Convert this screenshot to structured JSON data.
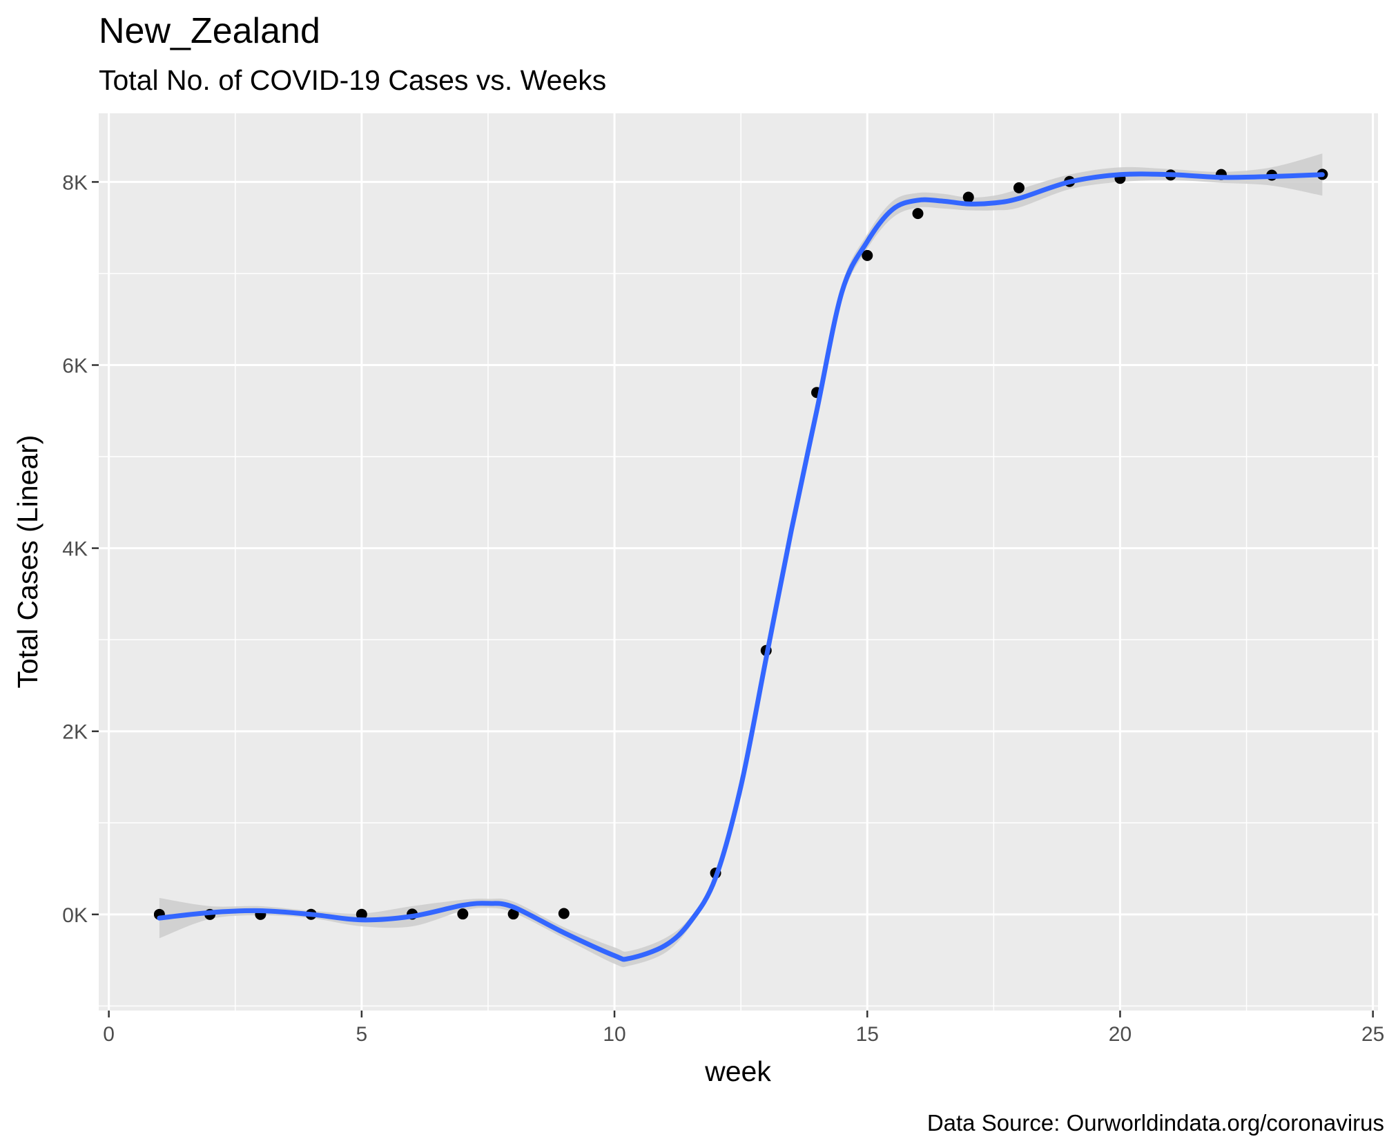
{
  "chart_data": {
    "type": "scatter",
    "title": "New_Zealand",
    "subtitle": "Total No. of COVID-19 Cases vs. Weeks",
    "xlabel": "week",
    "ylabel": "Total Cases (Linear)",
    "caption": "Data Source: Ourworldindata.org/coronavirus",
    "xlim": [
      -0.2,
      25.1
    ],
    "ylim": [
      -1050,
      8750
    ],
    "x_ticks": [
      0,
      5,
      10,
      15,
      20,
      25
    ],
    "x_tick_labels": [
      "0",
      "5",
      "10",
      "15",
      "20",
      "25"
    ],
    "y_ticks": [
      0,
      2000,
      4000,
      6000,
      8000
    ],
    "y_tick_labels": [
      "0K",
      "2K",
      "4K",
      "6K",
      "8K"
    ],
    "grid": true,
    "series": [
      {
        "kind": "points",
        "x": [
          1,
          2,
          3,
          4,
          5,
          6,
          7,
          8,
          9,
          12,
          13,
          14,
          15,
          16,
          17,
          18,
          19,
          20,
          21,
          22,
          23,
          24
        ],
        "y": [
          0,
          0,
          0,
          1,
          1,
          3,
          5,
          5,
          10,
          451,
          2882,
          5700,
          7197,
          7655,
          7833,
          7936,
          8005,
          8039,
          8076,
          8081,
          8074,
          8083
        ]
      },
      {
        "kind": "smooth",
        "x": [
          1,
          2,
          3,
          4,
          5,
          6,
          7,
          7.5,
          8,
          9,
          10,
          10.3,
          11,
          11.5,
          12,
          12.5,
          13,
          13.5,
          14,
          14.5,
          15,
          15.5,
          16,
          16.5,
          17,
          17.5,
          18,
          19,
          20,
          21,
          22,
          23,
          24
        ],
        "y": [
          -40,
          20,
          40,
          0,
          -60,
          -20,
          100,
          120,
          80,
          -200,
          -450,
          -480,
          -340,
          -80,
          400,
          1400,
          2800,
          4200,
          5500,
          6800,
          7350,
          7700,
          7800,
          7790,
          7760,
          7770,
          7820,
          8000,
          8080,
          8080,
          8050,
          8060,
          8080
        ],
        "lower": [
          -260,
          -50,
          -10,
          -40,
          -130,
          -130,
          40,
          70,
          20,
          -260,
          -540,
          -560,
          -420,
          -130,
          350,
          1340,
          2740,
          4140,
          5430,
          6720,
          7270,
          7610,
          7720,
          7710,
          7690,
          7690,
          7720,
          7920,
          8000,
          8020,
          7990,
          7960,
          7850
        ],
        "upper": [
          180,
          90,
          90,
          40,
          10,
          90,
          160,
          170,
          140,
          -140,
          -360,
          -400,
          -260,
          -30,
          450,
          1460,
          2860,
          4260,
          5570,
          6880,
          7430,
          7790,
          7880,
          7870,
          7830,
          7850,
          7920,
          8080,
          8160,
          8140,
          8110,
          8160,
          8310
        ]
      }
    ],
    "colors": {
      "panel": "#ebebeb",
      "grid": "#ffffff",
      "point": "#000000",
      "smooth_line": "#3366ff",
      "ribbon": "#cccccc"
    }
  }
}
